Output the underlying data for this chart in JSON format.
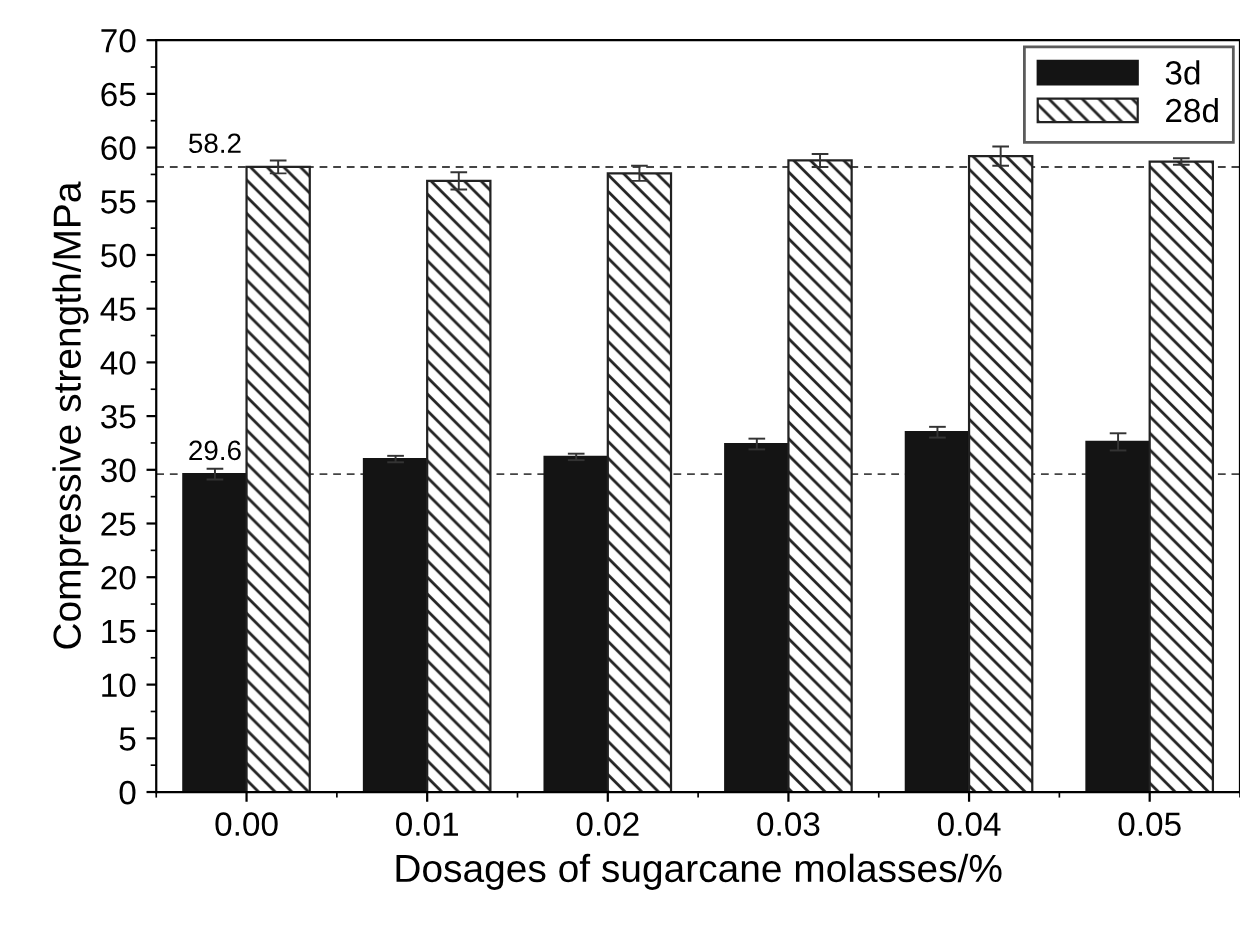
{
  "chart_data": {
    "type": "bar",
    "xlabel": "Dosages of sugarcane molasses/%",
    "ylabel": "Compressive strength/MPa",
    "categories": [
      "0.00",
      "0.01",
      "0.02",
      "0.03",
      "0.04",
      "0.05"
    ],
    "series": [
      {
        "name": "3d",
        "color": "#141414",
        "values": [
          29.6,
          31.0,
          31.2,
          32.4,
          33.5,
          32.6
        ],
        "errors": [
          0.5,
          0.3,
          0.3,
          0.5,
          0.5,
          0.8
        ]
      },
      {
        "name": "28d",
        "color": "#222222",
        "values": [
          58.2,
          56.9,
          57.6,
          58.8,
          59.2,
          58.7
        ],
        "errors": [
          0.6,
          0.8,
          0.7,
          0.6,
          0.9,
          0.3
        ]
      }
    ],
    "ylim": [
      0,
      70
    ],
    "yticks": [
      0,
      5,
      10,
      15,
      20,
      25,
      30,
      35,
      40,
      45,
      50,
      55,
      60,
      65,
      70
    ],
    "ref_lines": [
      {
        "axis": "y",
        "value": 29.6,
        "line_style": "dashed"
      },
      {
        "axis": "y",
        "value": 58.2,
        "line_style": "dashed"
      }
    ],
    "annotations": [
      {
        "text": "29.6",
        "x": "0.00",
        "y": 29.6
      },
      {
        "text": "58.2",
        "x": "0.00",
        "y": 58.2
      }
    ],
    "grid": false,
    "legend": "top right"
  }
}
